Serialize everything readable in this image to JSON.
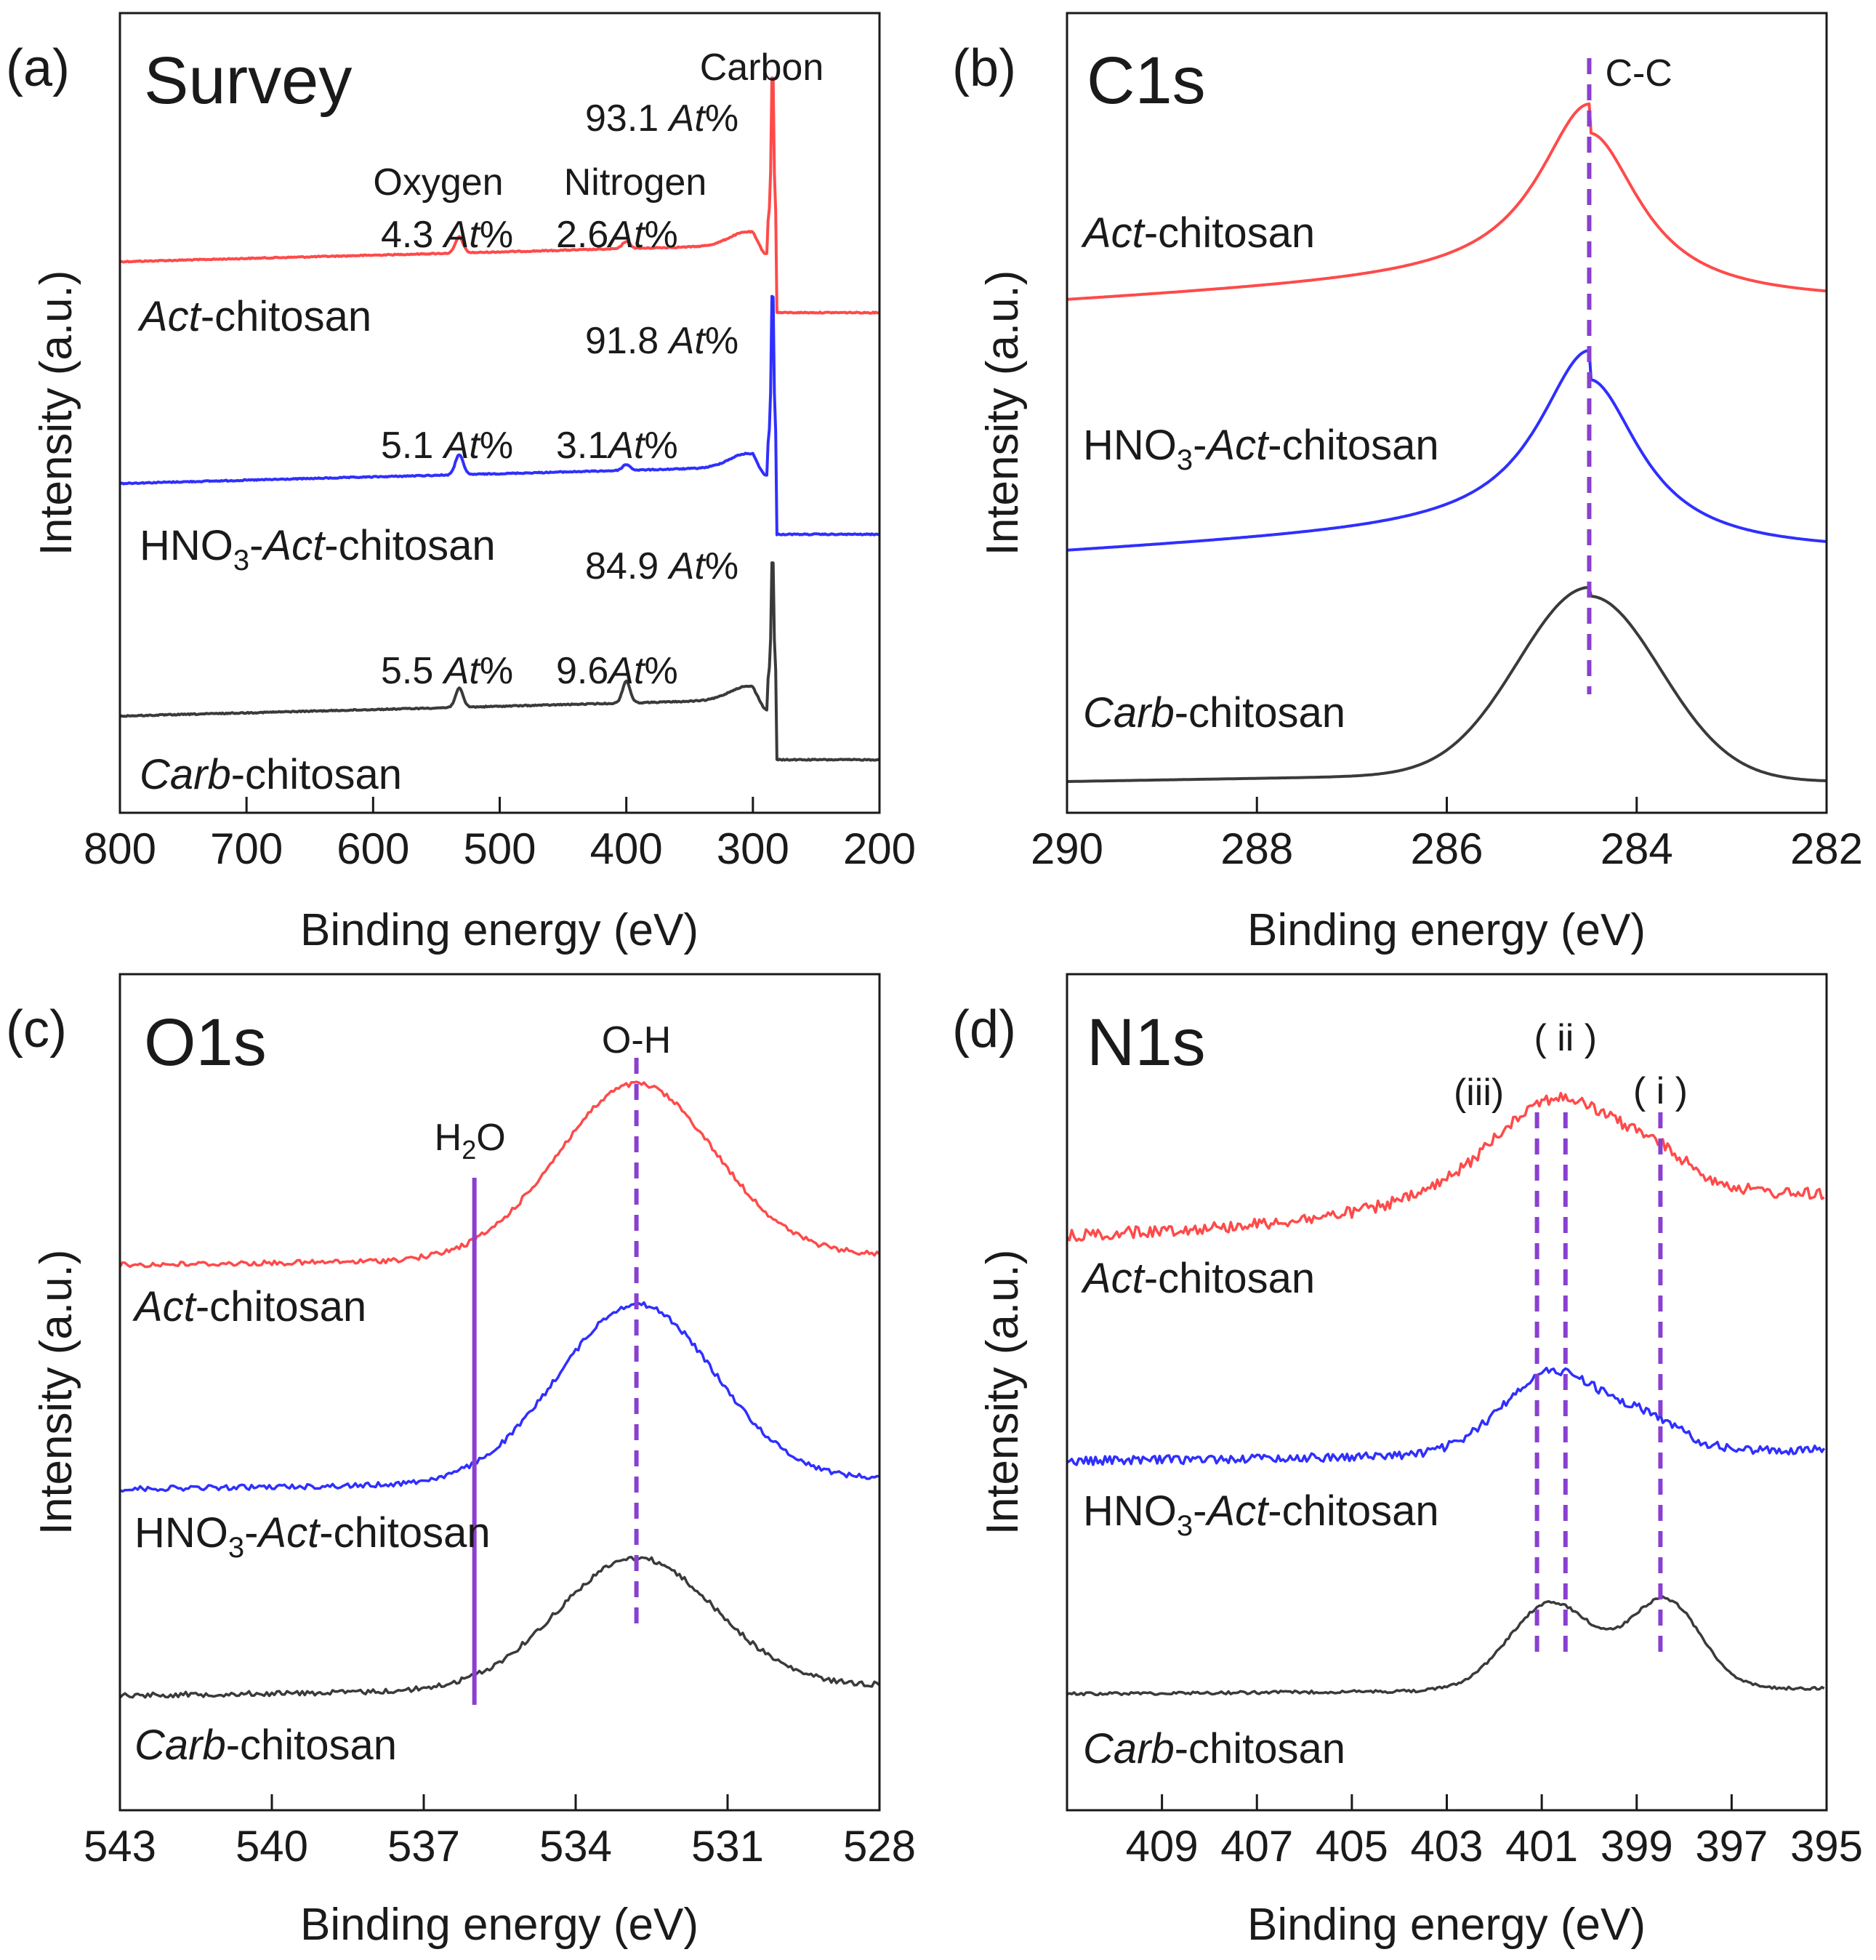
{
  "chart_data": [
    {
      "type": "line",
      "panel_label": "(a)",
      "title": "Survey",
      "xlabel": "Binding energy (eV)",
      "ylabel": "Intensity (a.u.)",
      "xlim": [
        800,
        200
      ],
      "ticks": [
        800,
        700,
        600,
        500,
        400,
        300,
        200
      ],
      "series": [
        {
          "name": "Act-chitosan",
          "label_pre": "",
          "label_it": "Act",
          "label_post": "-chitosan",
          "color": "#ff4a4a"
        },
        {
          "name": "HNO3-Act-chitosan",
          "label_pre": "HNO",
          "label_sub": "3",
          "label_mid": "-",
          "label_it": "Act",
          "label_post": "-chitosan",
          "color": "#2f2fff"
        },
        {
          "name": "Carb-chitosan",
          "label_pre": "",
          "label_it": "Carb",
          "label_post": "-chitosan",
          "color": "#3a3a3a"
        }
      ],
      "annotations": {
        "oxygen": "Oxygen",
        "nitrogen": "Nitrogen",
        "carbon": "Carbon",
        "at_unit": "At",
        "pct": "%",
        "act": {
          "o": "4.3",
          "n": "2.6",
          "c": "93.1"
        },
        "hno3": {
          "o": "5.1",
          "n": "3.1",
          "c": "91.8"
        },
        "carb": {
          "o": "5.5",
          "n": "9.6",
          "c": "84.9"
        },
        "atomic_percent": {
          "Act-chitosan": {
            "O": 4.3,
            "N": 2.6,
            "C": 93.1
          },
          "HNO3-Act-chitosan": {
            "O": 5.1,
            "N": 3.1,
            "C": 91.8
          },
          "Carb-chitosan": {
            "O": 5.5,
            "N": 9.6,
            "C": 84.9
          }
        }
      },
      "peaks_eV": {
        "O1s": 532,
        "N1s": 400,
        "C1s": 284.5
      }
    },
    {
      "type": "line",
      "panel_label": "(b)",
      "title": "C1s",
      "xlabel": "Binding energy (eV)",
      "ylabel": "Intensity (a.u.)",
      "xlim": [
        290,
        282
      ],
      "ticks": [
        290,
        288,
        286,
        284,
        282
      ],
      "reference_lines": [
        {
          "label": "C-C",
          "x": 284.5,
          "style": "dashed"
        }
      ],
      "series": [
        {
          "name": "Act-chitosan",
          "label_it": "Act",
          "label_post": "-chitosan",
          "color": "#ff4a4a",
          "peak": 284.5
        },
        {
          "name": "HNO3-Act-chitosan",
          "label_pre": "HNO",
          "label_sub": "3",
          "label_mid": "-",
          "label_it": "Act",
          "label_post": "-chitosan",
          "color": "#2f2fff",
          "peak": 284.5
        },
        {
          "name": "Carb-chitosan",
          "label_it": "Carb",
          "label_post": "-chitosan",
          "color": "#3a3a3a",
          "peak": 284.5
        }
      ]
    },
    {
      "type": "line",
      "panel_label": "(c)",
      "title": "O1s",
      "xlabel": "Binding energy (eV)",
      "ylabel": "Intensity (a.u.)",
      "xlim": [
        543,
        528
      ],
      "ticks": [
        543,
        540,
        537,
        534,
        531,
        528
      ],
      "reference_lines": [
        {
          "label": "O-H",
          "x": 532.8,
          "style": "dashed"
        },
        {
          "label": "H2O",
          "label_pre": "H",
          "label_sub": "2",
          "label_post": "O",
          "x": 536.0,
          "style": "solid"
        }
      ],
      "series": [
        {
          "name": "Act-chitosan",
          "label_it": "Act",
          "label_post": "-chitosan",
          "color": "#ff4a4a",
          "peak": 532.8
        },
        {
          "name": "HNO3-Act-chitosan",
          "label_pre": "HNO",
          "label_sub": "3",
          "label_mid": "-",
          "label_it": "Act",
          "label_post": "-chitosan",
          "color": "#2f2fff",
          "peak": 532.8
        },
        {
          "name": "Carb-chitosan",
          "label_it": "Carb",
          "label_post": "-chitosan",
          "color": "#3a3a3a",
          "peak": 532.8
        }
      ]
    },
    {
      "type": "line",
      "panel_label": "(d)",
      "title": "N1s",
      "xlabel": "Binding energy (eV)",
      "ylabel": "Intensity (a.u.)",
      "xlim": [
        411,
        395
      ],
      "ticks": [
        409,
        407,
        405,
        403,
        401,
        399,
        397,
        395
      ],
      "reference_lines": [
        {
          "label": "(iii)",
          "x": 401.1,
          "style": "dashed"
        },
        {
          "label": "( ii )",
          "x": 400.5,
          "style": "dashed"
        },
        {
          "label": "( i )",
          "x": 398.5,
          "style": "dashed"
        }
      ],
      "series": [
        {
          "name": "Act-chitosan",
          "label_it": "Act",
          "label_post": "-chitosan",
          "color": "#ff4a4a"
        },
        {
          "name": "HNO3-Act-chitosan",
          "label_pre": "HNO",
          "label_sub": "3",
          "label_mid": "-",
          "label_it": "Act",
          "label_post": "-chitosan",
          "color": "#2f2fff"
        },
        {
          "name": "Carb-chitosan",
          "label_it": "Carb",
          "label_post": "-chitosan",
          "color": "#3a3a3a"
        }
      ]
    }
  ],
  "colors": {
    "act": "#ff4a4a",
    "hno3": "#2f2fff",
    "carb": "#3a3a3a",
    "refline": "#8a3fd1"
  }
}
